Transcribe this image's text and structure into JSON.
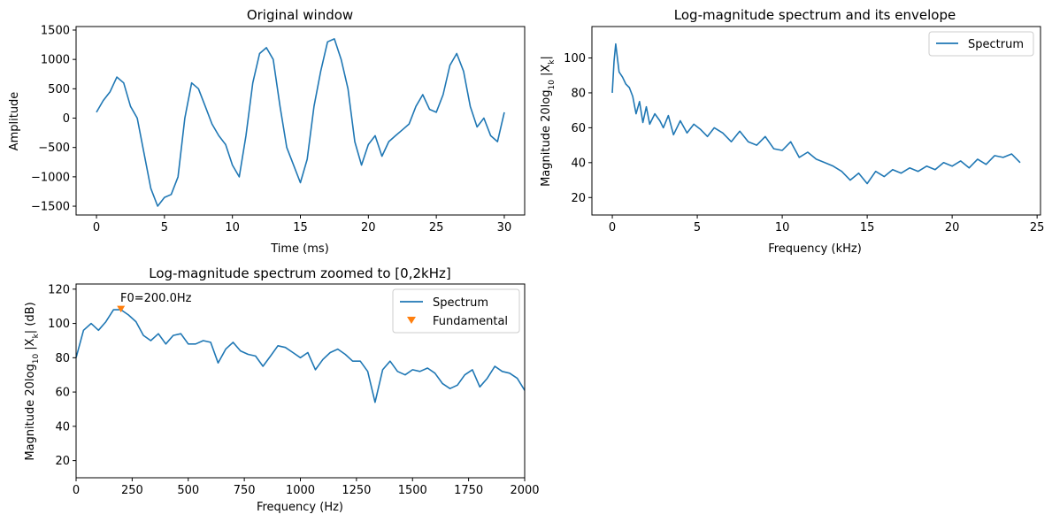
{
  "chart_data": [
    {
      "type": "line",
      "title": "Original window",
      "xlabel": "Time (ms)",
      "ylabel": "Amplitude",
      "xlim": [
        -1.5,
        31.5
      ],
      "ylim": [
        -1650,
        1560
      ],
      "xticks": [
        0,
        5,
        10,
        15,
        20,
        25,
        30
      ],
      "yticks": [
        -1500,
        -1000,
        -500,
        0,
        500,
        1000,
        1500
      ],
      "grid": false,
      "series": [
        {
          "color": "#1f77b4",
          "x": [
            0,
            0.5,
            1,
            1.5,
            2,
            2.5,
            3,
            3.5,
            4,
            4.5,
            5,
            5.5,
            6,
            6.5,
            7,
            7.5,
            8,
            8.5,
            9,
            9.5,
            10,
            10.5,
            11,
            11.5,
            12,
            12.5,
            13,
            13.5,
            14,
            14.5,
            15,
            15.5,
            16,
            16.5,
            17,
            17.5,
            18,
            18.5,
            19,
            19.5,
            20,
            20.5,
            21,
            21.5,
            22,
            22.5,
            23,
            23.5,
            24,
            24.5,
            25,
            25.5,
            26,
            26.5,
            27,
            27.5,
            28,
            28.5,
            29,
            29.5,
            30
          ],
          "y": [
            100,
            300,
            450,
            700,
            600,
            200,
            0,
            -600,
            -1200,
            -1500,
            -1350,
            -1300,
            -1000,
            0,
            600,
            500,
            200,
            -100,
            -300,
            -450,
            -800,
            -1000,
            -300,
            600,
            1100,
            1200,
            1000,
            200,
            -500,
            -800,
            -1100,
            -700,
            200,
            800,
            1300,
            1350,
            1000,
            500,
            -400,
            -800,
            -450,
            -300,
            -650,
            -400,
            -300,
            -200,
            -100,
            200,
            400,
            150,
            100,
            400,
            900,
            1100,
            800,
            200,
            -150,
            0,
            -300,
            -400,
            100
          ]
        }
      ]
    },
    {
      "type": "line",
      "title": "Log-magnitude spectrum and its envelope",
      "xlabel": "Frequency (kHz)",
      "ylabel": "Magnitude 20log",
      "ylabel_sub": "10",
      "ylabel_tail": " |X",
      "ylabel_k": "k",
      "ylabel_end": "|",
      "xlim": [
        -1.2,
        25.2
      ],
      "ylim": [
        10,
        118
      ],
      "xticks": [
        0,
        5,
        10,
        15,
        20,
        25
      ],
      "yticks": [
        20,
        40,
        60,
        80,
        100
      ],
      "legend": "top-right",
      "grid": false,
      "series": [
        {
          "name": "Spectrum",
          "color": "#1f77b4",
          "x": [
            0,
            0.1,
            0.2,
            0.3,
            0.4,
            0.6,
            0.8,
            1.0,
            1.2,
            1.4,
            1.6,
            1.8,
            2.0,
            2.2,
            2.5,
            2.8,
            3.0,
            3.3,
            3.6,
            4.0,
            4.4,
            4.8,
            5.2,
            5.6,
            6.0,
            6.5,
            7.0,
            7.5,
            8.0,
            8.5,
            9.0,
            9.5,
            10.0,
            10.5,
            11.0,
            11.5,
            12.0,
            12.5,
            13.0,
            13.5,
            14.0,
            14.5,
            15.0,
            15.5,
            16.0,
            16.5,
            17.0,
            17.5,
            18.0,
            18.5,
            19.0,
            19.5,
            20.0,
            20.5,
            21.0,
            21.5,
            22.0,
            22.5,
            23.0,
            23.5,
            24.0
          ],
          "y": [
            80,
            98,
            108,
            100,
            92,
            89,
            85,
            83,
            78,
            68,
            75,
            63,
            72,
            62,
            68,
            64,
            60,
            67,
            56,
            64,
            57,
            62,
            59,
            55,
            60,
            57,
            52,
            58,
            52,
            50,
            55,
            48,
            47,
            52,
            43,
            46,
            42,
            40,
            38,
            35,
            30,
            34,
            28,
            35,
            32,
            36,
            34,
            37,
            35,
            38,
            36,
            40,
            38,
            41,
            37,
            42,
            39,
            44,
            43,
            45,
            40
          ]
        }
      ]
    },
    {
      "type": "line",
      "title": "Log-magnitude spectrum zoomed to [0,2kHz]",
      "xlabel": "Frequency (Hz)",
      "ylabel": "Magnitude 20log",
      "ylabel_sub": "10",
      "ylabel_tail": " |X",
      "ylabel_k": "k",
      "ylabel_end": "| (dB)",
      "xlim": [
        0,
        2000
      ],
      "ylim": [
        10,
        123
      ],
      "xticks": [
        0,
        250,
        500,
        750,
        1000,
        1250,
        1500,
        1750,
        2000
      ],
      "yticks": [
        20,
        40,
        60,
        80,
        100,
        120
      ],
      "legend": "top-right",
      "grid": false,
      "annotation": "F0=200.0Hz",
      "fundamental": {
        "x": 200,
        "y": 108.5
      },
      "series": [
        {
          "name": "Spectrum",
          "color": "#1f77b4",
          "x": [
            0,
            33,
            67,
            100,
            133,
            167,
            200,
            233,
            267,
            300,
            333,
            367,
            400,
            433,
            467,
            500,
            533,
            567,
            600,
            633,
            667,
            700,
            733,
            767,
            800,
            833,
            867,
            900,
            933,
            967,
            1000,
            1033,
            1067,
            1100,
            1133,
            1167,
            1200,
            1233,
            1267,
            1300,
            1333,
            1367,
            1400,
            1433,
            1467,
            1500,
            1533,
            1567,
            1600,
            1633,
            1667,
            1700,
            1733,
            1767,
            1800,
            1833,
            1867,
            1900,
            1933,
            1967,
            2000
          ],
          "y": [
            80,
            96,
            100,
            96,
            101,
            108,
            108,
            105,
            101,
            93,
            90,
            94,
            88,
            93,
            94,
            88,
            88,
            90,
            89,
            77,
            85,
            89,
            84,
            82,
            81,
            75,
            81,
            87,
            86,
            83,
            80,
            83,
            73,
            79,
            83,
            85,
            82,
            78,
            78,
            72,
            54,
            73,
            78,
            72,
            70,
            73,
            72,
            74,
            71,
            65,
            62,
            64,
            70,
            73,
            63,
            68,
            75,
            72,
            71,
            68,
            61
          ]
        },
        {
          "name": "Fundamental",
          "color": "#ff7f0e",
          "marker": "triangle-down"
        }
      ]
    }
  ]
}
